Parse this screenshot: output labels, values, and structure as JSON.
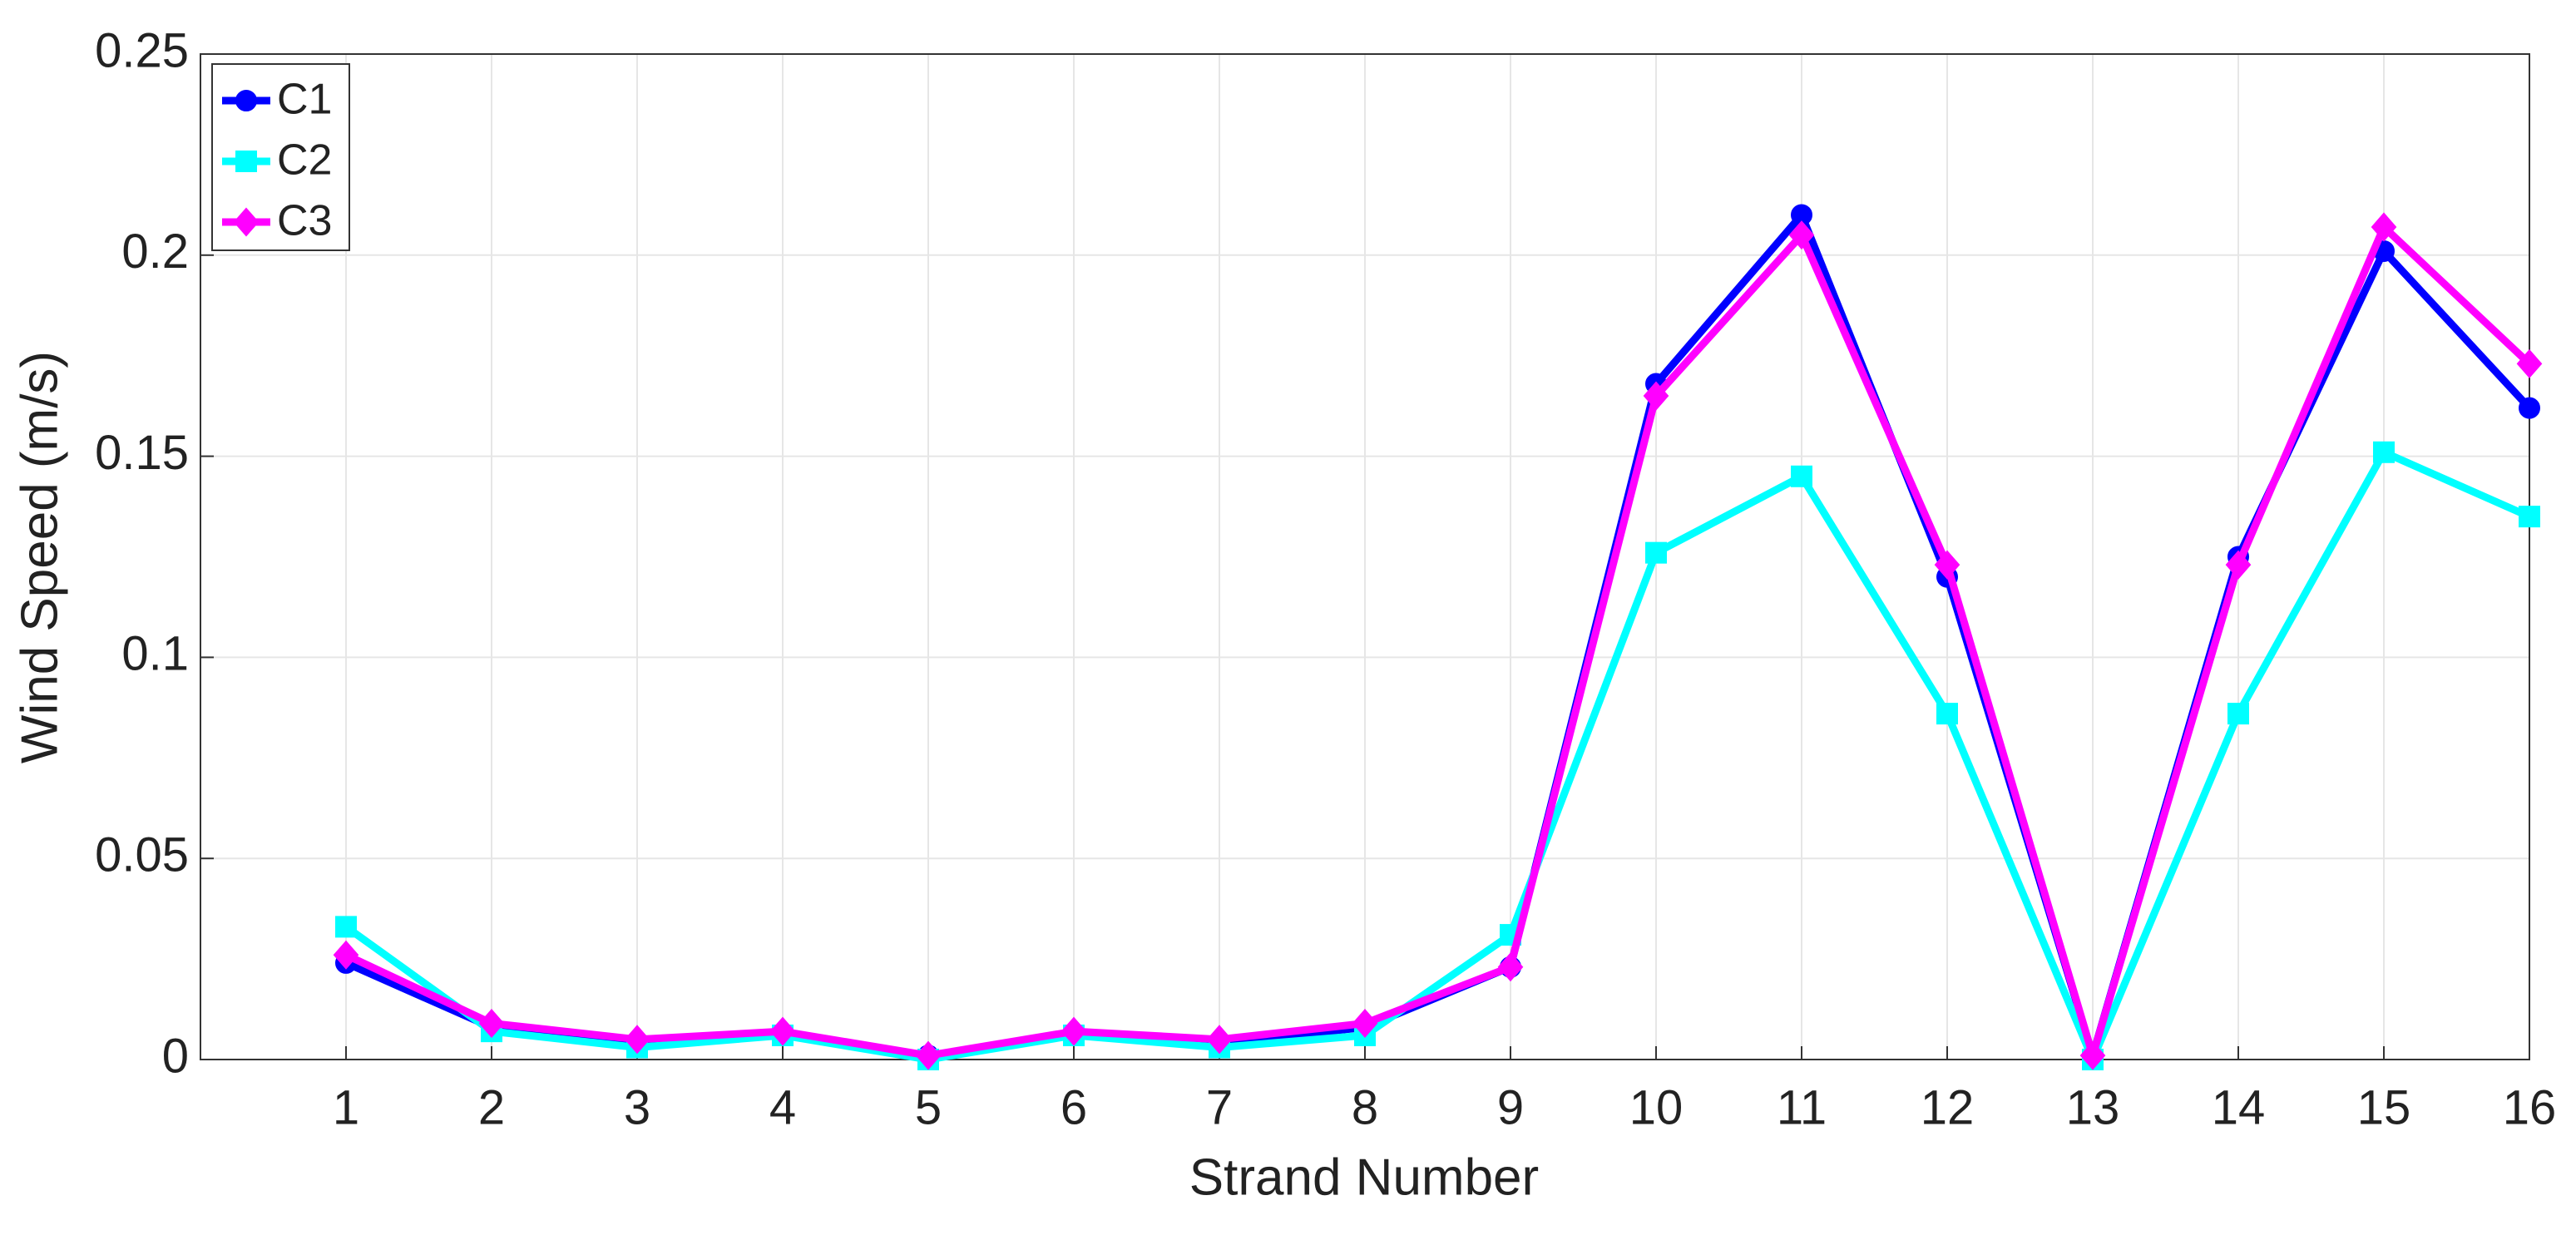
{
  "chart_data": {
    "type": "line",
    "xlabel": "Strand Number",
    "ylabel": "Wind Speed (m/s)",
    "x": [
      1,
      2,
      3,
      4,
      5,
      6,
      7,
      8,
      9,
      10,
      11,
      12,
      13,
      14,
      15,
      16
    ],
    "series": [
      {
        "name": "C1",
        "color": "#0000ff",
        "marker": "circle",
        "values": [
          0.024,
          0.008,
          0.004,
          0.006,
          0.001,
          0.006,
          0.004,
          0.008,
          0.023,
          0.168,
          0.21,
          0.12,
          0.001,
          0.125,
          0.201,
          0.162
        ]
      },
      {
        "name": "C2",
        "color": "#00ffff",
        "marker": "square",
        "values": [
          0.033,
          0.007,
          0.003,
          0.006,
          0,
          0.006,
          0.003,
          0.006,
          0.031,
          0.126,
          0.145,
          0.086,
          0,
          0.086,
          0.151,
          0.135
        ]
      },
      {
        "name": "C3",
        "color": "#ff00ff",
        "marker": "diamond",
        "values": [
          0.026,
          0.009,
          0.005,
          0.007,
          0.001,
          0.007,
          0.005,
          0.009,
          0.023,
          0.165,
          0.205,
          0.123,
          0.001,
          0.123,
          0.207,
          0.173
        ]
      }
    ],
    "xlim": [
      0,
      16
    ],
    "xticks": [
      1,
      2,
      3,
      4,
      5,
      6,
      7,
      8,
      9,
      10,
      11,
      12,
      13,
      14,
      15,
      16
    ],
    "ylim": [
      0,
      0.25
    ],
    "yticks": [
      0,
      0.05,
      0.1,
      0.15,
      0.2,
      0.25
    ],
    "grid": true,
    "legend": "upper left"
  }
}
